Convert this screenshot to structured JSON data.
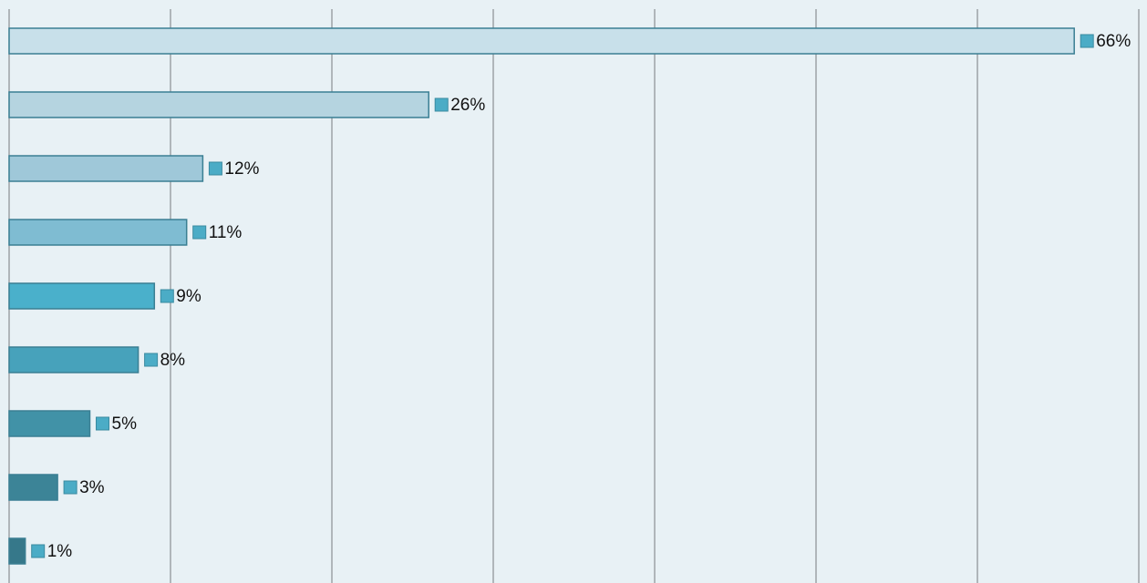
{
  "chart_data": {
    "type": "hbar",
    "categories": [
      null,
      null,
      null,
      null,
      null,
      null,
      null,
      null,
      null
    ],
    "values": [
      66,
      26,
      12,
      11,
      9,
      8,
      5,
      3,
      1
    ],
    "value_labels": [
      "66%",
      "26%",
      "12%",
      "11%",
      "9%",
      "8%",
      "5%",
      "3%",
      "1%"
    ],
    "colors": [
      "#c8e0ea",
      "#b5d4e0",
      "#9fc8d9",
      "#7fbcd2",
      "#4ab0cb",
      "#47a2bb",
      "#4192a7",
      "#3c8497",
      "#36788a"
    ],
    "marker_color": "#4bacc6",
    "xlim": [
      0,
      70
    ],
    "xticks": [
      0,
      10,
      20,
      30,
      40,
      50,
      60,
      70
    ],
    "grid": true
  }
}
